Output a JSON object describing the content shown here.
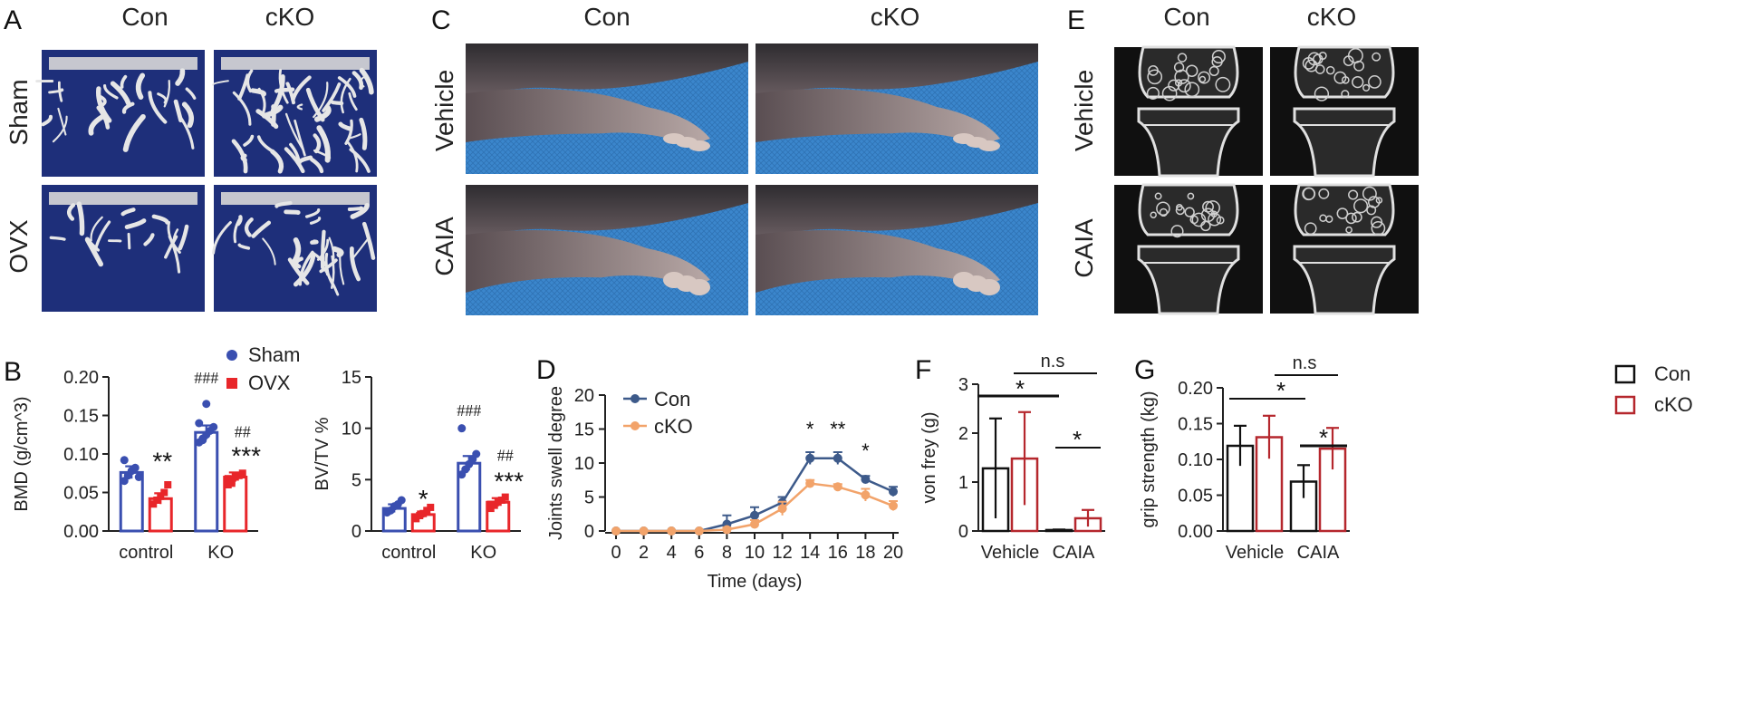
{
  "colors": {
    "sham": "#3a4fb0",
    "ovx": "#e8262a",
    "con_line": "#3d5a8a",
    "cko_line": "#f2a36a",
    "con_bar": "#111111",
    "cko_bar": "#b5272d",
    "micro_ct_bg": "#1e2f7a",
    "paw_bg": "#3a82c8",
    "ct_bg": "#101010"
  },
  "panel_labels": {
    "A": "A",
    "B": "B",
    "C": "C",
    "D": "D",
    "E": "E",
    "F": "F",
    "G": "G"
  },
  "panel_A": {
    "col_headers": [
      "Con",
      "cKO"
    ],
    "row_labels": [
      "Sham",
      "OVX"
    ],
    "image": "micro-ct-trabecular-bone-render"
  },
  "panel_C": {
    "col_headers": [
      "Con",
      "cKO"
    ],
    "row_labels": [
      "Vehicle",
      "CAIA"
    ],
    "image": "mouse-hind-paw-photo"
  },
  "panel_E": {
    "col_headers": [
      "Con",
      "cKO"
    ],
    "row_labels": [
      "Vehicle",
      "CAIA"
    ],
    "image": "ct-knee-joint-section"
  },
  "chart_data": [
    {
      "id": "B1",
      "type": "bar",
      "categories": [
        "control",
        "KO"
      ],
      "series": [
        {
          "name": "Sham",
          "values": [
            0.076,
            0.128
          ],
          "errors": [
            0.008,
            0.009
          ],
          "points": [
            [
              0.065,
              0.072,
              0.078,
              0.082,
              0.07,
              0.092
            ],
            [
              0.115,
              0.12,
              0.125,
              0.13,
              0.135,
              0.14,
              0.118,
              0.165
            ]
          ]
        },
        {
          "name": "OVX",
          "values": [
            0.042,
            0.07
          ],
          "errors": [
            0.007,
            0.006
          ],
          "points": [
            [
              0.035,
              0.04,
              0.045,
              0.05,
              0.06
            ],
            [
              0.06,
              0.065,
              0.07,
              0.072,
              0.075,
              0.068,
              0.062
            ]
          ]
        }
      ],
      "ylabel": "BMD (g/cm^3)",
      "ylim": [
        0,
        0.2
      ],
      "yticks": [
        "0.00",
        "0.05",
        "0.10",
        "0.15",
        "0.20"
      ],
      "annotations": [
        {
          "text": "**",
          "group": 0,
          "series": 1
        },
        {
          "text": "###",
          "group": 1,
          "series": 0
        },
        {
          "text": "##",
          "group": 1,
          "series": 1
        },
        {
          "text": "***",
          "group": 1,
          "series": 1
        }
      ],
      "legend": "top-right"
    },
    {
      "id": "B2",
      "type": "bar",
      "categories": [
        "control",
        "KO"
      ],
      "series": [
        {
          "name": "Sham",
          "values": [
            2.2,
            6.6
          ],
          "errors": [
            0.4,
            0.7
          ],
          "points": [
            [
              1.8,
              2.0,
              2.4,
              2.6,
              3.0
            ],
            [
              5.5,
              6.0,
              6.5,
              7.0,
              7.5,
              10.0
            ]
          ]
        },
        {
          "name": "OVX",
          "values": [
            1.6,
            2.8
          ],
          "errors": [
            0.3,
            0.4
          ],
          "points": [
            [
              1.2,
              1.5,
              1.7,
              2.0,
              2.3
            ],
            [
              2.2,
              2.5,
              2.8,
              3.0,
              3.3,
              2.6
            ]
          ]
        }
      ],
      "ylabel": "BV/TV %",
      "ylim": [
        0,
        15
      ],
      "yticks": [
        "0",
        "5",
        "10",
        "15"
      ],
      "annotations": [
        {
          "text": "*",
          "group": 0,
          "series": 1
        },
        {
          "text": "###",
          "group": 1,
          "series": 0
        },
        {
          "text": "##",
          "group": 1,
          "series": 1
        },
        {
          "text": "***",
          "group": 1,
          "series": 1
        }
      ]
    },
    {
      "id": "D",
      "type": "line",
      "x": [
        0,
        2,
        4,
        6,
        8,
        10,
        12,
        14,
        16,
        18,
        20
      ],
      "series": [
        {
          "name": "Con",
          "values": [
            0,
            0,
            0,
            0,
            1.0,
            2.3,
            4.2,
            10.7,
            10.7,
            7.6,
            5.8
          ],
          "errors": [
            0,
            0,
            0,
            0,
            1.3,
            1.2,
            0.8,
            0.9,
            0.9,
            0.5,
            0.7
          ]
        },
        {
          "name": "cKO",
          "values": [
            0,
            0,
            0,
            0,
            0.2,
            1.0,
            3.3,
            7.0,
            6.5,
            5.3,
            3.7
          ],
          "errors": [
            0,
            0,
            0,
            0,
            0.3,
            0.6,
            1.0,
            0.5,
            0.4,
            0.9,
            0.7
          ]
        }
      ],
      "xlabel": "Time (days)",
      "ylabel": "Joints swell degree",
      "ylim": [
        0,
        20
      ],
      "yticks": [
        "0",
        "5",
        "10",
        "15",
        "20"
      ],
      "xticks": [
        "0",
        "2",
        "4",
        "6",
        "8",
        "10",
        "12",
        "14",
        "16",
        "18",
        "20"
      ],
      "annotations": [
        {
          "text": "*",
          "x": 14
        },
        {
          "text": "**",
          "x": 16
        },
        {
          "text": "*",
          "x": 18
        }
      ],
      "legend": "top-left"
    },
    {
      "id": "F",
      "type": "bar",
      "categories": [
        "Vehicle",
        "CAIA"
      ],
      "series": [
        {
          "name": "Con",
          "values": [
            1.28,
            0.02
          ],
          "errors": [
            1.02,
            0.01
          ]
        },
        {
          "name": "cKO",
          "values": [
            1.48,
            0.26
          ],
          "errors": [
            0.95,
            0.17
          ]
        }
      ],
      "ylabel": "von frey (g)",
      "ylim": [
        0,
        3
      ],
      "yticks": [
        "0",
        "1",
        "2",
        "3"
      ],
      "brackets": [
        {
          "text": "n.s"
        },
        {
          "text": "*"
        },
        {
          "text": "*"
        }
      ]
    },
    {
      "id": "G",
      "type": "bar",
      "categories": [
        "Vehicle",
        "CAIA"
      ],
      "series": [
        {
          "name": "Con",
          "values": [
            0.119,
            0.069
          ],
          "errors": [
            0.028,
            0.023
          ]
        },
        {
          "name": "cKO",
          "values": [
            0.131,
            0.115
          ],
          "errors": [
            0.03,
            0.029
          ]
        }
      ],
      "ylabel": "grip strength (kg)",
      "ylim": [
        0,
        0.2
      ],
      "yticks": [
        "0.00",
        "0.05",
        "0.10",
        "0.15",
        "0.20"
      ],
      "brackets": [
        {
          "text": "n.s"
        },
        {
          "text": "*"
        },
        {
          "text": "*"
        }
      ],
      "legend": "top-right"
    }
  ]
}
